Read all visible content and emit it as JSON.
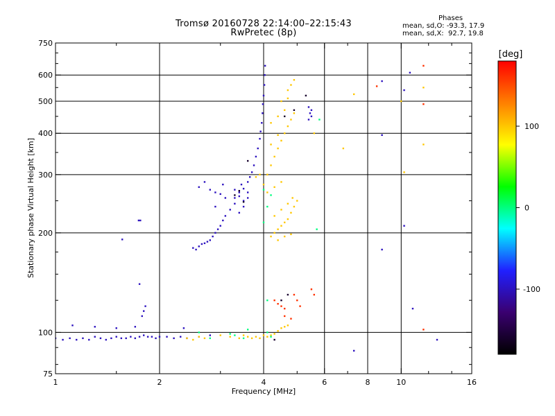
{
  "chart_data": {
    "type": "scatter",
    "title": "Tromsø 20160728 22:14:00–22:15:43",
    "subtitle": "RwPretec (8p)",
    "xlabel": "Frequency [MHz]",
    "ylabel": "Stationary phase Virtual Height [km]",
    "xscale": "log",
    "yscale": "log",
    "xlim": [
      1,
      16
    ],
    "ylim": [
      75,
      750
    ],
    "x_ticks": [
      1,
      2,
      4,
      6,
      8,
      10,
      16
    ],
    "x_tick_labels": [
      "1",
      "2",
      "4",
      "6",
      "8",
      "10",
      "16"
    ],
    "x_minor_ticks": [
      1.5,
      3,
      5,
      7,
      12,
      14
    ],
    "y_ticks": [
      75,
      100,
      200,
      300,
      400,
      500,
      600,
      750
    ],
    "y_tick_labels": [
      "75",
      "100",
      "200",
      "300",
      "400",
      "500",
      "600",
      "750"
    ],
    "y_minor_ticks": [
      80,
      90,
      125,
      150,
      175,
      250,
      350,
      450,
      550,
      650,
      700
    ],
    "grid": true,
    "stats_title": "Phases",
    "stats_lines": [
      "mean, sd,O: -93.3, 17.9",
      "mean, sd,X:  92.7, 19.8"
    ],
    "colorbar": {
      "label": "[deg]",
      "range": [
        -180,
        180
      ],
      "ticks": [
        -100,
        0,
        100
      ],
      "tick_labels": [
        "-100",
        "0",
        "100"
      ],
      "colors": [
        "#000000",
        "#3a0070",
        "#2020ff",
        "#00ffff",
        "#00ff00",
        "#ffff00",
        "#ff8000",
        "#ff0000"
      ]
    },
    "series": [
      {
        "phase": -100,
        "points": [
          [
            1.0,
            96
          ],
          [
            1.05,
            95
          ],
          [
            1.1,
            96
          ],
          [
            1.15,
            95
          ],
          [
            1.2,
            96
          ],
          [
            1.25,
            95
          ],
          [
            1.3,
            97
          ],
          [
            1.35,
            96
          ],
          [
            1.4,
            95
          ],
          [
            1.45,
            96
          ],
          [
            1.5,
            97
          ],
          [
            1.55,
            96
          ],
          [
            1.6,
            96
          ],
          [
            1.65,
            97
          ],
          [
            1.7,
            96
          ],
          [
            1.75,
            97
          ],
          [
            1.8,
            98
          ],
          [
            1.85,
            97
          ],
          [
            1.9,
            97
          ],
          [
            1.95,
            96
          ],
          [
            2.0,
            97
          ],
          [
            2.1,
            97
          ],
          [
            2.2,
            96
          ],
          [
            2.3,
            97
          ],
          [
            2.4,
            96
          ],
          [
            2.6,
            97
          ],
          [
            2.8,
            98
          ],
          [
            1.12,
            105
          ],
          [
            1.3,
            104
          ],
          [
            1.5,
            103
          ],
          [
            1.7,
            104
          ],
          [
            1.78,
            112
          ],
          [
            1.8,
            116
          ],
          [
            1.82,
            120
          ],
          [
            1.75,
            140
          ],
          [
            1.56,
            191
          ],
          [
            1.74,
            218
          ],
          [
            1.76,
            218
          ],
          [
            2.35,
            103
          ],
          [
            2.5,
            180
          ],
          [
            2.55,
            178
          ],
          [
            2.6,
            182
          ],
          [
            2.65,
            185
          ],
          [
            2.7,
            186
          ],
          [
            2.75,
            188
          ],
          [
            2.8,
            190
          ],
          [
            2.85,
            195
          ],
          [
            2.9,
            200
          ],
          [
            2.95,
            205
          ],
          [
            3.0,
            210
          ],
          [
            3.05,
            218
          ],
          [
            3.1,
            225
          ],
          [
            3.2,
            235
          ],
          [
            3.3,
            245
          ],
          [
            3.4,
            258
          ],
          [
            3.5,
            272
          ],
          [
            3.6,
            285
          ],
          [
            3.65,
            295
          ],
          [
            3.7,
            305
          ],
          [
            3.75,
            320
          ],
          [
            3.8,
            340
          ],
          [
            3.85,
            360
          ],
          [
            3.9,
            385
          ],
          [
            3.92,
            405
          ],
          [
            3.95,
            430
          ],
          [
            3.97,
            460
          ],
          [
            3.98,
            490
          ],
          [
            4.0,
            520
          ],
          [
            4.02,
            560
          ],
          [
            4.03,
            600
          ],
          [
            4.04,
            640
          ],
          [
            2.6,
            275
          ],
          [
            2.7,
            285
          ],
          [
            2.8,
            270
          ],
          [
            2.9,
            265
          ],
          [
            3.0,
            262
          ],
          [
            3.1,
            255
          ],
          [
            3.05,
            280
          ],
          [
            2.9,
            240
          ],
          [
            3.3,
            255
          ],
          [
            3.4,
            265
          ],
          [
            3.5,
            250
          ],
          [
            3.6,
            265
          ],
          [
            3.4,
            230
          ],
          [
            3.5,
            240
          ],
          [
            3.6,
            255
          ],
          [
            3.3,
            270
          ],
          [
            3.45,
            280
          ],
          [
            5.4,
            440
          ],
          [
            5.5,
            450
          ],
          [
            5.45,
            460
          ],
          [
            5.5,
            470
          ],
          [
            5.4,
            480
          ],
          [
            8.8,
            575
          ],
          [
            8.8,
            395
          ],
          [
            8.8,
            178
          ],
          [
            10.2,
            210
          ],
          [
            10.8,
            118
          ],
          [
            12.7,
            95
          ],
          [
            7.3,
            88
          ],
          [
            10.2,
            540
          ],
          [
            10.6,
            610
          ]
        ]
      },
      {
        "phase": 100,
        "points": [
          [
            2.4,
            96
          ],
          [
            2.5,
            95
          ],
          [
            2.6,
            97
          ],
          [
            2.7,
            96
          ],
          [
            3.0,
            98
          ],
          [
            3.2,
            97
          ],
          [
            3.4,
            96
          ],
          [
            3.5,
            98
          ],
          [
            3.6,
            97
          ],
          [
            3.7,
            96
          ],
          [
            3.8,
            97
          ],
          [
            3.9,
            96
          ],
          [
            4.0,
            98
          ],
          [
            4.1,
            97
          ],
          [
            4.2,
            98
          ],
          [
            4.3,
            99
          ],
          [
            4.4,
            101
          ],
          [
            4.5,
            103
          ],
          [
            4.6,
            104
          ],
          [
            4.7,
            105
          ],
          [
            4.0,
            280
          ],
          [
            4.1,
            300
          ],
          [
            4.2,
            320
          ],
          [
            4.3,
            340
          ],
          [
            4.4,
            360
          ],
          [
            4.5,
            380
          ],
          [
            4.6,
            400
          ],
          [
            4.7,
            420
          ],
          [
            4.8,
            440
          ],
          [
            4.9,
            460
          ],
          [
            4.1,
            265
          ],
          [
            4.3,
            275
          ],
          [
            4.5,
            285
          ],
          [
            4.2,
            370
          ],
          [
            4.4,
            395
          ],
          [
            4.7,
            540
          ],
          [
            4.8,
            560
          ],
          [
            4.9,
            580
          ],
          [
            4.2,
            195
          ],
          [
            4.3,
            200
          ],
          [
            4.4,
            205
          ],
          [
            4.5,
            210
          ],
          [
            4.6,
            215
          ],
          [
            4.7,
            220
          ],
          [
            4.8,
            230
          ],
          [
            4.9,
            240
          ],
          [
            5.0,
            250
          ],
          [
            4.3,
            225
          ],
          [
            4.5,
            235
          ],
          [
            4.7,
            245
          ],
          [
            4.85,
            255
          ],
          [
            4.4,
            190
          ],
          [
            4.6,
            195
          ],
          [
            4.8,
            198
          ],
          [
            3.8,
            295
          ],
          [
            3.9,
            300
          ],
          [
            4.2,
            430
          ],
          [
            4.4,
            450
          ],
          [
            4.6,
            470
          ],
          [
            4.5,
            500
          ],
          [
            4.7,
            510
          ],
          [
            5.6,
            400
          ],
          [
            6.8,
            360
          ],
          [
            10.0,
            500
          ],
          [
            11.6,
            370
          ],
          [
            11.6,
            550
          ],
          [
            7.3,
            525
          ],
          [
            10.2,
            305
          ]
        ]
      },
      {
        "phase": 160,
        "points": [
          [
            4.3,
            125
          ],
          [
            4.4,
            122
          ],
          [
            4.5,
            120
          ],
          [
            4.6,
            118
          ],
          [
            4.9,
            130
          ],
          [
            5.0,
            125
          ],
          [
            5.1,
            120
          ],
          [
            5.5,
            135
          ],
          [
            5.6,
            130
          ],
          [
            4.6,
            112
          ],
          [
            4.8,
            110
          ],
          [
            11.6,
            640
          ],
          [
            11.6,
            490
          ],
          [
            11.6,
            102
          ],
          [
            8.5,
            555
          ]
        ]
      },
      {
        "phase": 0,
        "points": [
          [
            2.6,
            100
          ],
          [
            3.3,
            98
          ],
          [
            3.5,
            96
          ],
          [
            2.8,
            96
          ],
          [
            4.1,
            100
          ],
          [
            4.0,
            215
          ],
          [
            4.1,
            240
          ],
          [
            4.2,
            260
          ],
          [
            5.7,
            205
          ],
          [
            5.8,
            440
          ],
          [
            4.1,
            125
          ],
          [
            4.2,
            97
          ],
          [
            4.0,
            270
          ],
          [
            3.2,
            99
          ],
          [
            3.6,
            102
          ]
        ]
      },
      {
        "phase": -160,
        "points": [
          [
            3.3,
            260
          ],
          [
            3.4,
            268
          ],
          [
            3.5,
            248
          ],
          [
            3.6,
            330
          ],
          [
            4.6,
            450
          ],
          [
            4.9,
            470
          ],
          [
            4.5,
            125
          ],
          [
            4.7,
            130
          ],
          [
            5.3,
            520
          ],
          [
            4.3,
            95
          ]
        ]
      }
    ]
  }
}
